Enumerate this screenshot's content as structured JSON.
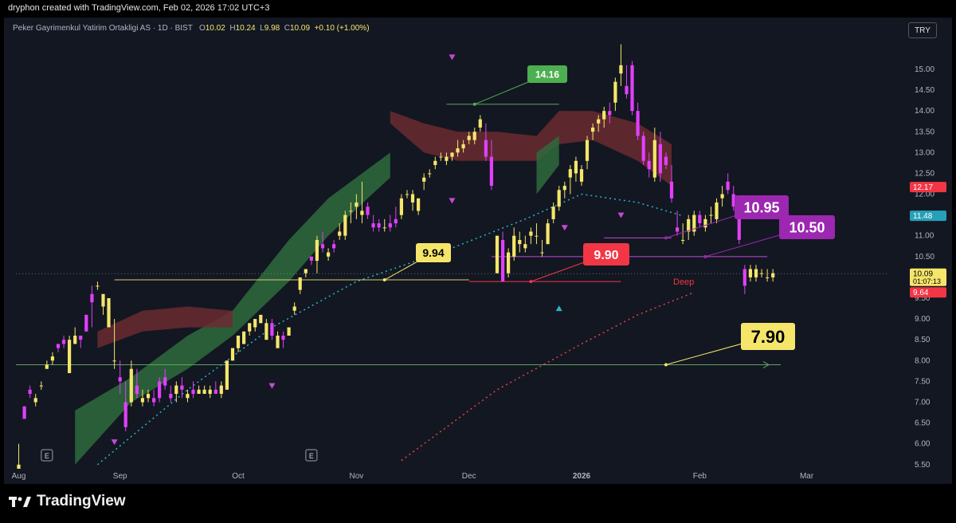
{
  "header": {
    "attribution": "dryphon created with TradingView.com, Feb 02, 2026 17:02 UTC+3"
  },
  "legend": {
    "name": "Peker Gayrimenkul Yatirim Ortakligi AS · 1D · BIST",
    "o_label": "O",
    "o": "10.02",
    "h_label": "H",
    "h": "10.24",
    "l_label": "L",
    "l": "9.98",
    "c_label": "C",
    "c": "10.09",
    "change": "+0.10 (+1.00%)"
  },
  "currency": "TRY",
  "footer": {
    "brand": "TradingView"
  },
  "chart_data": {
    "type": "candlestick",
    "symbol": "Peker Gayrimenkul Yatirim Ortakligi AS",
    "interval": "1D",
    "exchange": "BIST",
    "y_ticks": [
      "5.50",
      "6.00",
      "6.50",
      "7.00",
      "7.50",
      "8.00",
      "8.50",
      "9.00",
      "9.50",
      "10.00",
      "10.50",
      "11.00",
      "11.50",
      "12.00",
      "12.50",
      "13.00",
      "13.50",
      "14.00",
      "14.50",
      "15.00"
    ],
    "ylim": [
      5.4,
      15.9
    ],
    "x_ticks": [
      {
        "label": "Aug",
        "i": 0
      },
      {
        "label": "Sep",
        "i": 18
      },
      {
        "label": "Oct",
        "i": 39
      },
      {
        "label": "Nov",
        "i": 60
      },
      {
        "label": "Dec",
        "i": 80
      },
      {
        "label": "2026",
        "i": 100
      },
      {
        "label": "Feb",
        "i": 121
      },
      {
        "label": "Mar",
        "i": 140
      }
    ],
    "candles": [
      [
        5.4,
        6.0,
        5.4,
        5.5
      ],
      [
        6.9,
        6.9,
        6.6,
        6.6
      ],
      [
        7.3,
        7.4,
        7.1,
        7.2
      ],
      [
        7.0,
        7.2,
        6.9,
        7.1
      ],
      [
        7.4,
        7.5,
        7.3,
        7.4
      ],
      [
        7.8,
        8.0,
        7.8,
        7.9
      ],
      [
        8.0,
        8.2,
        7.9,
        8.1
      ],
      [
        8.4,
        8.4,
        8.2,
        8.3
      ],
      [
        8.5,
        8.6,
        8.3,
        8.4
      ],
      [
        7.7,
        8.6,
        7.7,
        8.5
      ],
      [
        8.4,
        8.8,
        8.4,
        8.6
      ],
      [
        8.6,
        8.5,
        8.3,
        8.5
      ],
      [
        9.1,
        9.1,
        8.7,
        8.7
      ],
      [
        9.6,
        9.8,
        8.8,
        9.4
      ],
      [
        9.8,
        9.9,
        9.7,
        9.8
      ],
      [
        9.3,
        9.6,
        9.1,
        9.6
      ],
      [
        8.8,
        9.5,
        8.8,
        9.5
      ],
      [
        8.0,
        9.0,
        7.8,
        8.0
      ],
      [
        7.6,
        8.0,
        7.2,
        7.5
      ],
      [
        7.0,
        7.5,
        6.3,
        6.4
      ],
      [
        7.0,
        8.0,
        6.9,
        7.8
      ],
      [
        7.4,
        7.8,
        7.1,
        7.2
      ],
      [
        7.0,
        7.3,
        6.9,
        7.1
      ],
      [
        7.1,
        7.3,
        7.0,
        7.2
      ],
      [
        7.1,
        7.3,
        6.9,
        7.0
      ],
      [
        7.5,
        7.6,
        7.0,
        7.1
      ],
      [
        7.6,
        7.8,
        7.3,
        7.4
      ],
      [
        7.2,
        7.4,
        7.0,
        7.1
      ],
      [
        7.2,
        7.5,
        7.0,
        7.4
      ],
      [
        7.4,
        7.6,
        7.1,
        7.3
      ],
      [
        7.1,
        7.3,
        7.0,
        7.2
      ],
      [
        7.3,
        7.5,
        7.1,
        7.2
      ],
      [
        7.2,
        7.4,
        7.2,
        7.3
      ],
      [
        7.2,
        7.4,
        7.2,
        7.3
      ],
      [
        7.2,
        7.4,
        7.1,
        7.3
      ],
      [
        7.3,
        7.5,
        7.2,
        7.2
      ],
      [
        7.2,
        7.5,
        7.1,
        7.4
      ],
      [
        7.3,
        8.0,
        7.3,
        8.0
      ],
      [
        8.0,
        8.3,
        8.0,
        8.3
      ],
      [
        8.3,
        8.6,
        8.2,
        8.6
      ],
      [
        8.4,
        8.7,
        8.4,
        8.7
      ],
      [
        8.7,
        8.9,
        8.6,
        8.9
      ],
      [
        8.8,
        9.0,
        8.7,
        9.0
      ],
      [
        8.9,
        9.1,
        8.9,
        9.1
      ],
      [
        8.5,
        9.0,
        8.5,
        8.9
      ],
      [
        8.9,
        9.0,
        8.5,
        8.6
      ],
      [
        8.3,
        8.7,
        8.3,
        8.6
      ],
      [
        8.6,
        8.7,
        8.3,
        8.5
      ],
      [
        8.6,
        8.8,
        8.6,
        8.8
      ],
      [
        9.2,
        9.4,
        9.1,
        9.3
      ],
      [
        9.7,
        10.0,
        9.6,
        10.0
      ],
      [
        10.1,
        10.2,
        10.0,
        10.2
      ],
      [
        10.5,
        10.5,
        10.3,
        10.4
      ],
      [
        10.4,
        11.0,
        10.1,
        10.9
      ],
      [
        10.8,
        11.1,
        10.6,
        10.7
      ],
      [
        10.5,
        10.7,
        10.4,
        10.6
      ],
      [
        10.8,
        10.9,
        10.6,
        10.7
      ],
      [
        11.0,
        11.3,
        10.9,
        11.1
      ],
      [
        11.0,
        11.6,
        10.9,
        11.5
      ],
      [
        11.6,
        11.8,
        11.3,
        11.6
      ],
      [
        11.7,
        12.0,
        11.4,
        11.8
      ],
      [
        11.5,
        12.3,
        11.3,
        11.6
      ],
      [
        11.7,
        11.8,
        11.4,
        11.5
      ],
      [
        11.3,
        11.5,
        11.1,
        11.2
      ],
      [
        11.3,
        11.4,
        11.1,
        11.2
      ],
      [
        11.2,
        11.4,
        11.1,
        11.2
      ],
      [
        11.3,
        11.5,
        11.1,
        11.2
      ],
      [
        11.4,
        11.7,
        11.2,
        11.3
      ],
      [
        11.5,
        12.0,
        11.4,
        11.9
      ],
      [
        12.0,
        12.1,
        11.9,
        12.0
      ],
      [
        11.8,
        12.1,
        11.6,
        12.0
      ],
      [
        11.6,
        11.9,
        11.5,
        11.9
      ],
      [
        12.3,
        12.5,
        12.1,
        12.4
      ],
      [
        12.5,
        12.6,
        12.4,
        12.5
      ],
      [
        12.7,
        12.9,
        12.6,
        12.8
      ],
      [
        12.9,
        13.0,
        12.8,
        12.9
      ],
      [
        12.8,
        13.0,
        12.7,
        12.9
      ],
      [
        12.9,
        13.0,
        12.8,
        13.0
      ],
      [
        13.0,
        13.3,
        12.9,
        13.1
      ],
      [
        13.1,
        13.3,
        13.0,
        13.2
      ],
      [
        13.3,
        13.5,
        13.2,
        13.4
      ],
      [
        13.3,
        13.6,
        13.2,
        13.5
      ],
      [
        13.6,
        13.9,
        13.5,
        13.8
      ],
      [
        13.3,
        13.7,
        12.8,
        12.9
      ],
      [
        12.9,
        13.3,
        12.1,
        12.2
      ]
    ],
    "candles_tail": [
      [
        10.1,
        11.0,
        10.1,
        11.0
      ],
      [
        10.9,
        11.1,
        9.9,
        9.9
      ],
      [
        10.1,
        10.7,
        10.0,
        10.6
      ],
      [
        10.5,
        11.2,
        10.4,
        11.0
      ],
      [
        10.8,
        11.1,
        10.6,
        10.9
      ],
      [
        10.7,
        11.0,
        10.6,
        10.8
      ],
      [
        11.0,
        11.2,
        10.8,
        11.1
      ],
      [
        11.0,
        11.3,
        10.8,
        11.0
      ],
      [
        10.6,
        10.9,
        10.5,
        10.6
      ],
      [
        10.8,
        11.4,
        10.8,
        11.3
      ],
      [
        11.4,
        11.8,
        11.3,
        11.7
      ],
      [
        11.7,
        12.2,
        11.6,
        12.1
      ],
      [
        12.1,
        12.3,
        11.9,
        12.2
      ],
      [
        12.4,
        12.7,
        12.0,
        12.6
      ],
      [
        12.5,
        12.9,
        12.3,
        12.8
      ],
      [
        12.3,
        12.7,
        12.2,
        12.6
      ],
      [
        12.8,
        13.4,
        12.6,
        13.3
      ],
      [
        13.5,
        13.7,
        13.3,
        13.6
      ],
      [
        13.7,
        13.9,
        13.5,
        13.8
      ],
      [
        13.8,
        14.1,
        13.6,
        14.0
      ],
      [
        14.0,
        14.2,
        13.7,
        13.9
      ],
      [
        14.2,
        14.8,
        14.0,
        14.7
      ],
      [
        14.9,
        15.6,
        14.6,
        15.1
      ],
      [
        14.6,
        15.1,
        14.3,
        14.4
      ],
      [
        15.1,
        15.2,
        13.9,
        14.0
      ],
      [
        14.0,
        14.2,
        13.3,
        13.4
      ],
      [
        13.4,
        13.5,
        12.7,
        12.8
      ],
      [
        12.8,
        13.0,
        12.4,
        12.6
      ],
      [
        12.4,
        13.6,
        12.3,
        13.3
      ],
      [
        13.2,
        13.5,
        12.3,
        12.5
      ],
      [
        12.9,
        13.0,
        12.6,
        12.7
      ],
      [
        12.3,
        12.7,
        11.8,
        11.9
      ],
      [
        11.2,
        11.6,
        11.0,
        11.1
      ],
      [
        10.9,
        11.3,
        10.8,
        10.9
      ],
      [
        11.1,
        11.5,
        10.9,
        11.4
      ],
      [
        11.1,
        11.6,
        11.0,
        11.5
      ],
      [
        11.5,
        11.6,
        11.2,
        11.3
      ],
      [
        11.2,
        11.5,
        11.1,
        11.4
      ],
      [
        11.5,
        11.7,
        11.3,
        11.5
      ],
      [
        11.4,
        11.9,
        11.3,
        11.8
      ],
      [
        11.9,
        12.2,
        11.7,
        12.0
      ],
      [
        12.3,
        12.5,
        12.0,
        12.1
      ],
      [
        12.0,
        12.2,
        11.6,
        11.7
      ],
      [
        11.6,
        11.7,
        10.8,
        10.9
      ],
      [
        10.2,
        10.3,
        9.6,
        9.8
      ],
      [
        10.0,
        10.3,
        9.9,
        10.2
      ],
      [
        10.0,
        10.3,
        9.9,
        10.2
      ],
      [
        10.1,
        10.2,
        10.0,
        10.1
      ],
      [
        10.0,
        10.2,
        9.9,
        10.0
      ],
      [
        10.0,
        10.2,
        9.9,
        10.1
      ]
    ],
    "price_labels": [
      {
        "value": 12.17,
        "text": "12.17",
        "color": "#f23645"
      },
      {
        "value": 11.48,
        "text": "11.48",
        "color": "#26a0b8"
      },
      {
        "value": 10.09,
        "text": "10.09",
        "sub": "01:07:13",
        "color": "#f5e66b"
      },
      {
        "value": 9.64,
        "text": "9.64",
        "color": "#f23645"
      }
    ],
    "annotations": [
      {
        "text": "14.16",
        "color": "#4caf50"
      },
      {
        "text": "9.94",
        "color": "#f5e66b"
      },
      {
        "text": "9.90",
        "color": "#f23645"
      },
      {
        "text": "10.95",
        "color": "#9c27b0"
      },
      {
        "text": "10.50",
        "color": "#9c27b0"
      },
      {
        "text": "7.90",
        "color": "#f5e66b"
      },
      {
        "text": "Deep",
        "color": "#f23645"
      }
    ],
    "events": [
      {
        "text": "E"
      },
      {
        "text": "E"
      }
    ],
    "colors": {
      "up": "#f5e66b",
      "down": "#e040fb",
      "background": "#131722"
    }
  }
}
